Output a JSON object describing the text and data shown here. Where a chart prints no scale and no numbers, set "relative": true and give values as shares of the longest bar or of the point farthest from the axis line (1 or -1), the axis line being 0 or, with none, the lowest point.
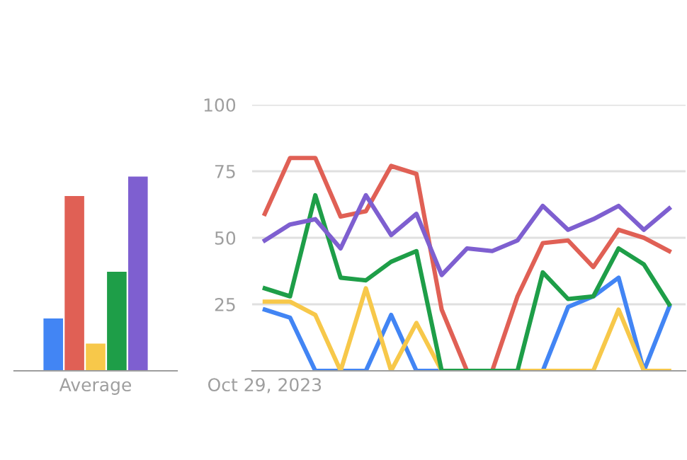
{
  "chart_data": [
    {
      "type": "bar",
      "relative": true,
      "categories": [
        "Average"
      ],
      "grid": false,
      "legend": false,
      "series": [
        {
          "color": "#4285f4",
          "values": [
            0.27
          ]
        },
        {
          "color": "#e06055",
          "values": [
            0.9
          ]
        },
        {
          "color": "#f7c84a",
          "values": [
            0.14
          ]
        },
        {
          "color": "#1e9e48",
          "values": [
            0.51
          ]
        },
        {
          "color": "#7e5fd0",
          "values": [
            1
          ]
        }
      ]
    },
    {
      "type": "line",
      "categories": [
        "Oct 29, 2023",
        null,
        null,
        null,
        null,
        null,
        null,
        null,
        null,
        null,
        null,
        null,
        null,
        null,
        null,
        null,
        null
      ],
      "ylim": [
        0,
        100
      ],
      "yticks": [
        25,
        50,
        75,
        100
      ],
      "grid": "y",
      "legend": false,
      "marker": "none",
      "line_style": "solid",
      "series": [
        {
          "color": "#4285f4",
          "values": [
            23,
            20,
            0,
            0,
            0,
            21,
            0,
            0,
            0,
            0,
            0,
            0,
            24,
            28,
            35,
            0,
            24
          ]
        },
        {
          "color": "#e06055",
          "values": [
            59,
            80,
            80,
            58,
            60,
            77,
            74,
            23,
            0,
            0,
            28,
            48,
            49,
            39,
            53,
            50,
            45
          ]
        },
        {
          "color": "#f7c84a",
          "values": [
            26,
            26,
            21,
            0,
            31,
            0,
            18,
            0,
            0,
            0,
            0,
            0,
            0,
            0,
            23,
            0,
            0
          ]
        },
        {
          "color": "#1e9e48",
          "values": [
            31,
            28,
            66,
            35,
            34,
            41,
            45,
            0,
            0,
            0,
            0,
            37,
            27,
            28,
            46,
            40,
            25
          ]
        },
        {
          "color": "#7e5fd0",
          "values": [
            49,
            55,
            57,
            46,
            66,
            51,
            59,
            36,
            46,
            45,
            49,
            62,
            53,
            57,
            62,
            53,
            61
          ]
        }
      ]
    }
  ]
}
